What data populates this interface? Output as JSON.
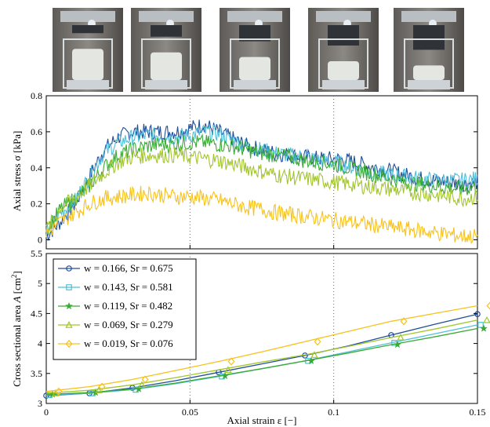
{
  "photos": [
    {
      "name": "specimen-photo-1",
      "compression": 0.05
    },
    {
      "name": "specimen-photo-2",
      "compression": 0.15
    },
    {
      "name": "specimen-photo-3",
      "compression": 0.28
    },
    {
      "name": "specimen-photo-4",
      "compression": 0.4
    },
    {
      "name": "specimen-photo-5",
      "compression": 0.52
    }
  ],
  "chart_data": [
    {
      "type": "line",
      "title": "",
      "xlabel": "",
      "ylabel": "Axial stress σ [kPa]",
      "xlim": [
        0,
        0.15
      ],
      "ylim": [
        -0.05,
        0.8
      ],
      "yticks": [
        "0",
        "0.2",
        "0.4",
        "0.6",
        "0.8"
      ],
      "grid": "dotted, vertical at 0.05 and 0.1",
      "series": [
        {
          "color": "#1f4e9b",
          "values_x": [
            0,
            0.005,
            0.01,
            0.015,
            0.02,
            0.025,
            0.03,
            0.035,
            0.04,
            0.045,
            0.05,
            0.055,
            0.06,
            0.065,
            0.07,
            0.075,
            0.08,
            0.085,
            0.09,
            0.095,
            0.1,
            0.105,
            0.11,
            0.115,
            0.12,
            0.125,
            0.13,
            0.135,
            0.14,
            0.145,
            0.15
          ],
          "values_y": [
            0.02,
            0.1,
            0.2,
            0.35,
            0.5,
            0.57,
            0.6,
            0.6,
            0.6,
            0.6,
            0.62,
            0.64,
            0.6,
            0.56,
            0.52,
            0.5,
            0.48,
            0.47,
            0.46,
            0.45,
            0.45,
            0.44,
            0.42,
            0.4,
            0.38,
            0.36,
            0.34,
            0.33,
            0.32,
            0.31,
            0.32
          ]
        },
        {
          "color": "#4fc0d8",
          "values_x": [
            0,
            0.005,
            0.01,
            0.015,
            0.02,
            0.025,
            0.03,
            0.035,
            0.04,
            0.045,
            0.05,
            0.055,
            0.06,
            0.065,
            0.07,
            0.075,
            0.08,
            0.085,
            0.09,
            0.095,
            0.1,
            0.105,
            0.11,
            0.115,
            0.12,
            0.125,
            0.13,
            0.135,
            0.14,
            0.145,
            0.15
          ],
          "values_y": [
            0.05,
            0.15,
            0.22,
            0.35,
            0.48,
            0.54,
            0.57,
            0.58,
            0.58,
            0.57,
            0.58,
            0.6,
            0.59,
            0.55,
            0.52,
            0.5,
            0.48,
            0.47,
            0.46,
            0.44,
            0.43,
            0.41,
            0.39,
            0.37,
            0.36,
            0.35,
            0.34,
            0.33,
            0.33,
            0.33,
            0.34
          ]
        },
        {
          "color": "#3aaa35",
          "values_x": [
            0,
            0.005,
            0.01,
            0.015,
            0.02,
            0.025,
            0.03,
            0.035,
            0.04,
            0.045,
            0.05,
            0.055,
            0.06,
            0.065,
            0.07,
            0.075,
            0.08,
            0.085,
            0.09,
            0.095,
            0.1,
            0.105,
            0.11,
            0.115,
            0.12,
            0.125,
            0.13,
            0.135,
            0.14,
            0.145,
            0.15
          ],
          "values_y": [
            0.05,
            0.17,
            0.23,
            0.3,
            0.4,
            0.47,
            0.5,
            0.52,
            0.53,
            0.53,
            0.54,
            0.54,
            0.53,
            0.52,
            0.5,
            0.48,
            0.47,
            0.46,
            0.44,
            0.43,
            0.42,
            0.4,
            0.38,
            0.36,
            0.34,
            0.32,
            0.31,
            0.3,
            0.29,
            0.28,
            0.3
          ]
        },
        {
          "color": "#a2c62c",
          "values_x": [
            0,
            0.005,
            0.01,
            0.015,
            0.02,
            0.025,
            0.03,
            0.035,
            0.04,
            0.045,
            0.05,
            0.055,
            0.06,
            0.065,
            0.07,
            0.075,
            0.08,
            0.085,
            0.09,
            0.095,
            0.1,
            0.105,
            0.11,
            0.115,
            0.12,
            0.125,
            0.13,
            0.135,
            0.14,
            0.145,
            0.15
          ],
          "values_y": [
            0.05,
            0.18,
            0.23,
            0.3,
            0.37,
            0.43,
            0.46,
            0.47,
            0.47,
            0.47,
            0.46,
            0.45,
            0.44,
            0.42,
            0.4,
            0.38,
            0.36,
            0.35,
            0.34,
            0.33,
            0.32,
            0.31,
            0.3,
            0.29,
            0.28,
            0.27,
            0.26,
            0.25,
            0.24,
            0.23,
            0.24
          ]
        },
        {
          "color": "#f7c21b",
          "values_x": [
            0,
            0.005,
            0.01,
            0.015,
            0.02,
            0.025,
            0.03,
            0.035,
            0.04,
            0.045,
            0.05,
            0.055,
            0.06,
            0.065,
            0.07,
            0.075,
            0.08,
            0.085,
            0.09,
            0.095,
            0.1,
            0.105,
            0.11,
            0.115,
            0.12,
            0.125,
            0.13,
            0.135,
            0.14,
            0.145,
            0.15
          ],
          "values_y": [
            0.03,
            0.1,
            0.15,
            0.2,
            0.23,
            0.24,
            0.25,
            0.26,
            0.25,
            0.24,
            0.24,
            0.23,
            0.22,
            0.2,
            0.18,
            0.17,
            0.15,
            0.14,
            0.13,
            0.12,
            0.11,
            0.1,
            0.09,
            0.08,
            0.07,
            0.06,
            0.05,
            0.04,
            0.03,
            0.02,
            0.02
          ]
        }
      ]
    },
    {
      "type": "line",
      "title": "",
      "xlabel": "Axial strain ε [−]",
      "ylabel": "Cross sectional area A [cm²]",
      "xlim": [
        0,
        0.15
      ],
      "ylim": [
        3,
        5.5
      ],
      "xticks": [
        "0",
        "0.05",
        "0.1",
        "0.15"
      ],
      "yticks": [
        "3",
        "3.5",
        "4",
        "4.5",
        "5",
        "5.5"
      ],
      "grid": "dotted, vertical at 0.05 and 0.1",
      "legend": "top-left",
      "series": [
        {
          "name": "w = 0.166, Sr = 0.675",
          "color": "#1f4e9b",
          "marker": "circle",
          "x": [
            0,
            0.015,
            0.03,
            0.045,
            0.06,
            0.075,
            0.09,
            0.105,
            0.12,
            0.135,
            0.15
          ],
          "y": [
            3.13,
            3.17,
            3.26,
            3.38,
            3.52,
            3.66,
            3.8,
            3.96,
            4.14,
            4.32,
            4.49
          ]
        },
        {
          "name": "w = 0.143, Sr = 0.581",
          "color": "#4fc0d8",
          "marker": "square",
          "x": [
            0,
            0.015,
            0.03,
            0.045,
            0.06,
            0.075,
            0.09,
            0.105,
            0.12,
            0.135,
            0.15
          ],
          "y": [
            3.14,
            3.17,
            3.23,
            3.33,
            3.45,
            3.58,
            3.71,
            3.86,
            4.01,
            4.16,
            4.31
          ]
        },
        {
          "name": "w = 0.119, Sr = 0.482",
          "color": "#3aaa35",
          "marker": "star",
          "x": [
            0,
            0.015,
            0.03,
            0.045,
            0.06,
            0.075,
            0.09,
            0.105,
            0.12,
            0.135,
            0.15
          ],
          "y": [
            3.15,
            3.18,
            3.24,
            3.34,
            3.46,
            3.58,
            3.71,
            3.84,
            3.98,
            4.11,
            4.25
          ]
        },
        {
          "name": "w = 0.069, Sr = 0.279",
          "color": "#a2c62c",
          "marker": "triangle",
          "x": [
            0,
            0.015,
            0.03,
            0.045,
            0.06,
            0.075,
            0.09,
            0.105,
            0.12,
            0.135,
            0.15
          ],
          "y": [
            3.17,
            3.22,
            3.31,
            3.43,
            3.56,
            3.69,
            3.81,
            3.95,
            4.1,
            4.24,
            4.39
          ]
        },
        {
          "name": "w = 0.019, Sr = 0.076",
          "color": "#f7c21b",
          "marker": "diamond",
          "x": [
            0,
            0.015,
            0.03,
            0.045,
            0.06,
            0.075,
            0.09,
            0.105,
            0.12,
            0.135,
            0.15
          ],
          "y": [
            3.2,
            3.28,
            3.4,
            3.55,
            3.7,
            3.86,
            4.03,
            4.2,
            4.37,
            4.5,
            4.63
          ]
        }
      ]
    }
  ]
}
